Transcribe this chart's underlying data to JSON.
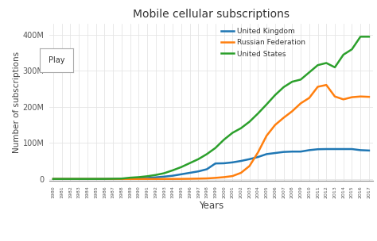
{
  "title": "Mobile cellular subscriptions",
  "xlabel": "Years",
  "ylabel": "Number of subscriptions",
  "background_color": "#ffffff",
  "plot_bg_color": "#ffffff",
  "grid_color": "#e5e5e5",
  "years": [
    1980,
    1981,
    1982,
    1983,
    1984,
    1985,
    1986,
    1987,
    1988,
    1989,
    1990,
    1991,
    1992,
    1993,
    1994,
    1995,
    1996,
    1997,
    1998,
    1999,
    2000,
    2001,
    2002,
    2003,
    2004,
    2005,
    2006,
    2007,
    2008,
    2009,
    2010,
    2011,
    2012,
    2013,
    2014,
    2015,
    2016,
    2017
  ],
  "uk": [
    0,
    0,
    0,
    0,
    0,
    0.1,
    0.2,
    0.3,
    0.5,
    1.0,
    1.7,
    2.7,
    4.4,
    6.5,
    9.0,
    13.0,
    17.0,
    21.0,
    27.0,
    43.0,
    43.5,
    46.0,
    50.0,
    55.0,
    61.0,
    69.0,
    72.0,
    75.0,
    76.0,
    76.0,
    80.0,
    82.5,
    83.0,
    83.0,
    83.0,
    83.0,
    80.0,
    79.0
  ],
  "russia": [
    0,
    0,
    0,
    0,
    0,
    0,
    0,
    0,
    0,
    0,
    0,
    0,
    0,
    0,
    0.1,
    0.2,
    0.5,
    1.0,
    1.5,
    3.0,
    5.0,
    8.0,
    17.0,
    36.0,
    74.0,
    120.0,
    150.0,
    170.0,
    188.0,
    210.0,
    225.0,
    256.0,
    261.0,
    229.0,
    221.0,
    227.0,
    229.0,
    228.0
  ],
  "usa": [
    0,
    0,
    0,
    0,
    0,
    0,
    0.1,
    0.5,
    1.0,
    3.5,
    5.0,
    7.5,
    11.0,
    16.0,
    24.0,
    33.0,
    44.0,
    55.0,
    69.0,
    86.0,
    109.0,
    128.0,
    141.0,
    159.0,
    182.0,
    207.0,
    233.0,
    255.0,
    270.0,
    276.0,
    296.0,
    316.0,
    322.0,
    310.0,
    345.0,
    360.0,
    395.0,
    395.0
  ],
  "uk_color": "#1f77b4",
  "russia_color": "#ff7f0e",
  "usa_color": "#2ca02c",
  "ylim": [
    -5,
    430
  ],
  "yticks": [
    0,
    100,
    200,
    300,
    400
  ],
  "ytick_labels": [
    "0",
    "100M",
    "200M",
    "300M",
    "400M"
  ],
  "line_width": 1.8
}
